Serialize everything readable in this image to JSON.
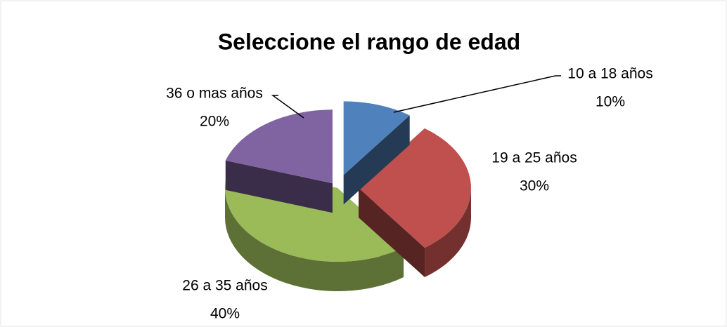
{
  "chart_data": {
    "type": "pie",
    "title": "Seleccione el rango de edad",
    "categories": [
      "10 a 18 años",
      "19 a 25 años",
      "26 a 35 años",
      "36 o mas años"
    ],
    "values": [
      10,
      30,
      40,
      20
    ],
    "value_labels": [
      "10%",
      "30%",
      "40%",
      "20%"
    ],
    "colors": [
      "#4f81bd",
      "#c0504d",
      "#9bbb59",
      "#8064a2"
    ]
  }
}
